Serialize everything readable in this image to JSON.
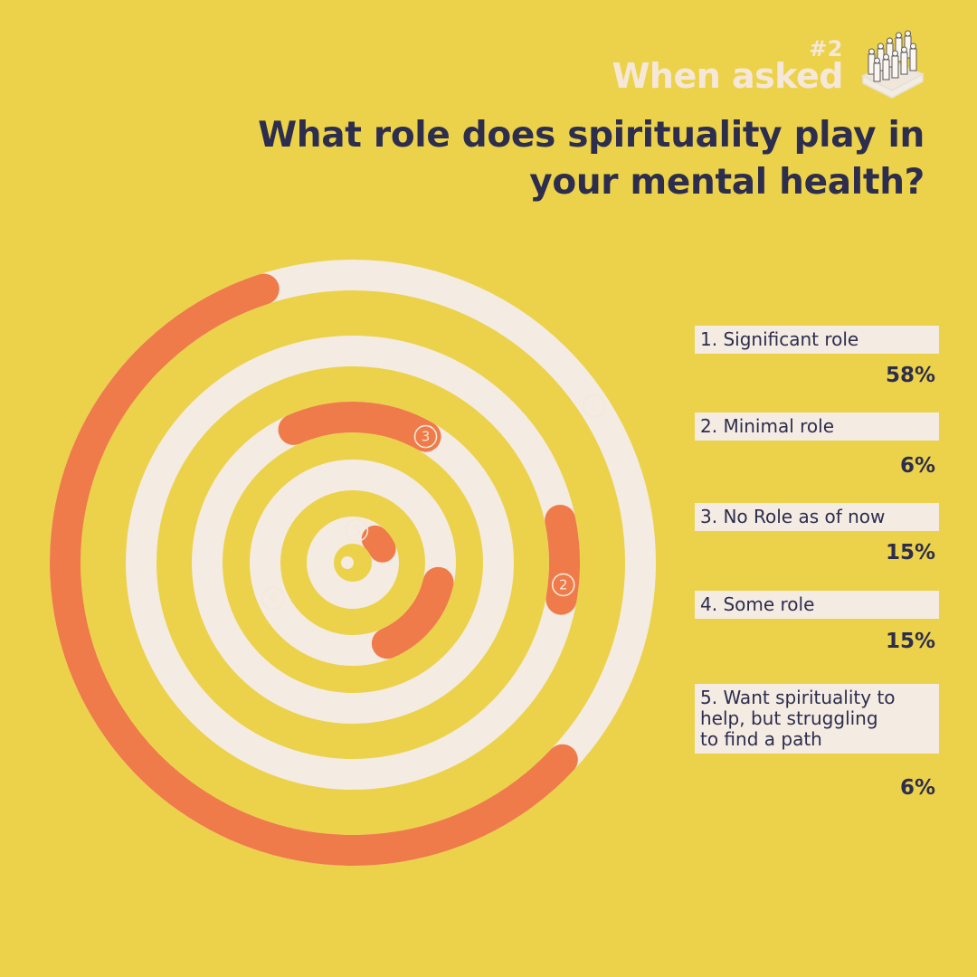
{
  "header": {
    "badge_number": "#2",
    "kicker": "When asked",
    "question_line1": "What role does spirituality play in",
    "question_line2": "your mental health?",
    "icon": "people-crowd-icon"
  },
  "colors": {
    "background": "#ecd24a",
    "track": "#f4ebe2",
    "accent": "#ef7a4a",
    "text": "#2d2d4d",
    "kicker": "#f6e8d8"
  },
  "legend": [
    {
      "number": "1",
      "label": "1. Significant role",
      "value": "58%"
    },
    {
      "number": "2",
      "label": "2. Minimal role",
      "value": "6%"
    },
    {
      "number": "3",
      "label": "3. No Role as of now",
      "value": "15%"
    },
    {
      "number": "4",
      "label": "4. Some role",
      "value": "15%"
    },
    {
      "number": "5",
      "label_lines": [
        "5. Want spirituality to",
        "help, but struggling",
        "to find a path"
      ],
      "value": "6%"
    }
  ],
  "chart_data": {
    "type": "radial-bar",
    "title": "What role does spirituality play in your mental health?",
    "unit": "%",
    "max": 100,
    "categories": [
      "Significant role",
      "Minimal role",
      "No Role as of now",
      "Some role",
      "Want spirituality to help, but struggling to find a path"
    ],
    "values": [
      58,
      6,
      15,
      15,
      6
    ],
    "labels": [
      "1",
      "2",
      "3",
      "4",
      "5"
    ]
  }
}
